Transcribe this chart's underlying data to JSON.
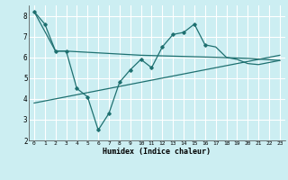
{
  "xlabel": "Humidex (Indice chaleur)",
  "bg_color": "#cceef2",
  "line_color": "#1e7070",
  "grid_color": "#ffffff",
  "ylim": [
    2,
    8.5
  ],
  "xlim": [
    -0.5,
    23.5
  ],
  "yticks": [
    2,
    3,
    4,
    5,
    6,
    7,
    8
  ],
  "xticks": [
    0,
    1,
    2,
    3,
    4,
    5,
    6,
    7,
    8,
    9,
    10,
    11,
    12,
    13,
    14,
    15,
    16,
    17,
    18,
    19,
    20,
    21,
    22,
    23
  ],
  "line1_x": [
    0,
    1,
    2,
    3,
    4,
    5,
    6,
    7,
    8,
    9,
    10,
    11,
    12,
    13,
    14,
    15,
    16,
    17,
    18,
    19,
    20,
    21,
    22,
    23
  ],
  "line1_y": [
    8.2,
    7.6,
    6.3,
    6.3,
    4.5,
    4.1,
    2.5,
    3.3,
    4.8,
    5.4,
    5.9,
    5.5,
    6.5,
    7.1,
    7.2,
    7.6,
    6.6,
    6.5,
    6.0,
    5.9,
    5.7,
    5.65,
    5.75,
    5.85
  ],
  "line2_x": [
    0,
    2,
    3,
    10,
    17,
    20,
    23
  ],
  "line2_y": [
    8.2,
    6.3,
    6.3,
    6.1,
    6.0,
    5.95,
    5.85
  ],
  "line3_x": [
    0,
    23
  ],
  "line3_y": [
    3.8,
    6.1
  ]
}
